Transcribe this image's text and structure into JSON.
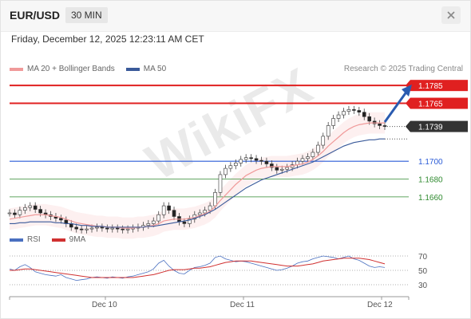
{
  "header": {
    "symbol": "EUR/USD",
    "timeframe": "30 MIN"
  },
  "datetime": "Friday, December 12, 2025 12:23:11 AM CET",
  "legend": {
    "ma20_label": "MA 20 + Bollinger Bands",
    "ma50_label": "MA 50",
    "ma20_color": "#f09a9a",
    "ma50_color": "#3a5a9a",
    "credit": "Research © 2025 Trading Central"
  },
  "rsi_legend": {
    "rsi_label": "RSI",
    "ma9_label": "9MA",
    "rsi_color": "#4a70c0",
    "ma9_color": "#d03030"
  },
  "watermark": "WikiFX",
  "icons": {
    "close": "close-x-icon",
    "arrow": "trend-arrow-icon"
  },
  "chart_data": {
    "type": "candlestick",
    "price_axis": {
      "ylim": [
        1.1625,
        1.1795
      ]
    },
    "levels": [
      {
        "value": 1.1785,
        "label": "1.1785",
        "style": "resistance",
        "color": "#e02020"
      },
      {
        "value": 1.1765,
        "label": "1.1765",
        "style": "resistance",
        "color": "#e02020"
      },
      {
        "value": 1.1739,
        "label": "1.1739",
        "style": "last-price",
        "color": "#333333"
      },
      {
        "value": 1.17,
        "label": "1.1700",
        "style": "pivot",
        "color": "#2a5bd7"
      },
      {
        "value": 1.168,
        "label": "1.1680",
        "style": "support",
        "color": "#2f8a2f"
      },
      {
        "value": 1.166,
        "label": "1.1660",
        "style": "support",
        "color": "#2f8a2f"
      }
    ],
    "last_price": 1.1739,
    "ma50_last": 1.1725,
    "x_labels": [
      "Dec 10",
      "Dec 11",
      "Dec 12"
    ],
    "close_prices": [
      1.1642,
      1.164,
      1.1645,
      1.1648,
      1.165,
      1.1646,
      1.1642,
      1.164,
      1.1638,
      1.1636,
      1.1634,
      1.163,
      1.1626,
      1.1624,
      1.1623,
      1.1624,
      1.1625,
      1.1626,
      1.1625,
      1.1624,
      1.1625,
      1.1624,
      1.1623,
      1.1624,
      1.1625,
      1.1626,
      1.1628,
      1.163,
      1.1633,
      1.164,
      1.165,
      1.1645,
      1.1638,
      1.1632,
      1.163,
      1.1635,
      1.164,
      1.1642,
      1.1645,
      1.165,
      1.1665,
      1.1685,
      1.1692,
      1.1695,
      1.1698,
      1.1702,
      1.1704,
      1.1703,
      1.1701,
      1.17,
      1.1697,
      1.1693,
      1.169,
      1.1691,
      1.1693,
      1.1696,
      1.17,
      1.1703,
      1.1705,
      1.171,
      1.1718,
      1.1728,
      1.174,
      1.1748,
      1.1752,
      1.1756,
      1.1758,
      1.1757,
      1.1755,
      1.175,
      1.1745,
      1.1742,
      1.174,
      1.1739
    ],
    "ma20": [
      1.1635,
      1.1636,
      1.1637,
      1.1638,
      1.1639,
      1.164,
      1.164,
      1.164,
      1.1639,
      1.1638,
      1.1637,
      1.1635,
      1.1633,
      1.1631,
      1.163,
      1.1629,
      1.1628,
      1.1627,
      1.1627,
      1.1626,
      1.1626,
      1.1626,
      1.1625,
      1.1625,
      1.1625,
      1.1626,
      1.1626,
      1.1627,
      1.1628,
      1.163,
      1.1633,
      1.1634,
      1.1635,
      1.1635,
      1.1635,
      1.1636,
      1.1637,
      1.1639,
      1.1641,
      1.1644,
      1.1649,
      1.1656,
      1.1662,
      1.1668,
      1.1674,
      1.1679,
      1.1684,
      1.1687,
      1.169,
      1.1692,
      1.1693,
      1.1694,
      1.1694,
      1.1694,
      1.1694,
      1.1695,
      1.1696,
      1.1697,
      1.1699,
      1.1702,
      1.1706,
      1.1711,
      1.1717,
      1.1722,
      1.1727,
      1.1732,
      1.1736,
      1.1739,
      1.1741,
      1.1742,
      1.1743,
      1.1743,
      1.1743,
      1.1743
    ],
    "ma50": [
      1.163,
      1.163,
      1.1631,
      1.1631,
      1.1632,
      1.1632,
      1.1632,
      1.1632,
      1.1632,
      1.1631,
      1.1631,
      1.163,
      1.163,
      1.1629,
      1.1628,
      1.1628,
      1.1627,
      1.1627,
      1.1627,
      1.1626,
      1.1626,
      1.1626,
      1.1626,
      1.1626,
      1.1626,
      1.1626,
      1.1626,
      1.1627,
      1.1627,
      1.1628,
      1.1629,
      1.163,
      1.1631,
      1.1632,
      1.1633,
      1.1634,
      1.1636,
      1.1638,
      1.164,
      1.1643,
      1.1646,
      1.165,
      1.1654,
      1.1658,
      1.1662,
      1.1666,
      1.167,
      1.1673,
      1.1676,
      1.1679,
      1.1681,
      1.1683,
      1.1685,
      1.1687,
      1.1689,
      1.1691,
      1.1693,
      1.1695,
      1.1697,
      1.1699,
      1.1702,
      1.1705,
      1.1708,
      1.1711,
      1.1714,
      1.1717,
      1.1719,
      1.1721,
      1.1722,
      1.1723,
      1.1724,
      1.1724,
      1.1725,
      1.1725
    ],
    "rsi": {
      "ylim": [
        20,
        80
      ],
      "levels": [
        70,
        50,
        30
      ],
      "rsi_values": [
        52,
        50,
        55,
        58,
        54,
        48,
        46,
        44,
        43,
        42,
        44,
        40,
        38,
        36,
        37,
        38,
        40,
        41,
        40,
        39,
        41,
        40,
        39,
        41,
        42,
        44,
        46,
        48,
        52,
        60,
        64,
        56,
        50,
        46,
        45,
        50,
        54,
        55,
        57,
        60,
        68,
        70,
        66,
        64,
        62,
        63,
        62,
        60,
        58,
        56,
        54,
        52,
        50,
        51,
        53,
        56,
        60,
        62,
        63,
        66,
        68,
        70,
        69,
        68,
        66,
        68,
        70,
        66,
        64,
        60,
        56,
        54,
        55,
        54
      ],
      "ma9_values": [
        50,
        50,
        51,
        52,
        52,
        51,
        50,
        49,
        48,
        47,
        46,
        45,
        44,
        43,
        42,
        41,
        40,
        40,
        40,
        40,
        40,
        40,
        40,
        40,
        40,
        41,
        42,
        43,
        44,
        46,
        48,
        50,
        51,
        51,
        51,
        52,
        53,
        53,
        54,
        55,
        57,
        59,
        61,
        62,
        63,
        63,
        63,
        63,
        62,
        61,
        60,
        59,
        58,
        57,
        56,
        56,
        56,
        57,
        58,
        59,
        61,
        63,
        64,
        65,
        66,
        67,
        67,
        67,
        67,
        66,
        65,
        63,
        61,
        59
      ]
    }
  }
}
